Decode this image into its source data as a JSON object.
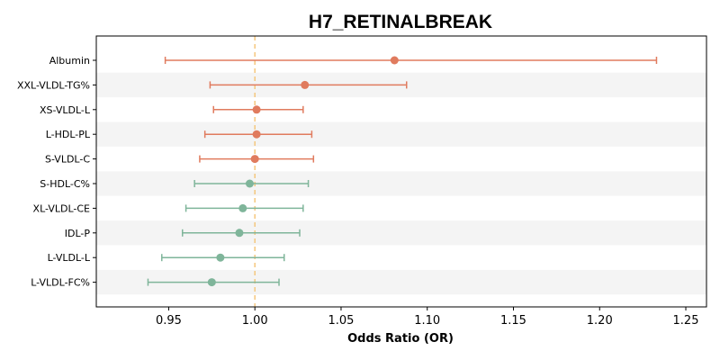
{
  "chart_data": {
    "type": "forest",
    "title": "H7_RETINALBREAK",
    "xlabel": "Odds Ratio (OR)",
    "xlim": [
      0.908,
      1.262
    ],
    "xticks": [
      0.95,
      1.0,
      1.05,
      1.1,
      1.15,
      1.2,
      1.25
    ],
    "xtick_labels": [
      "0.95",
      "1.00",
      "1.05",
      "1.10",
      "1.15",
      "1.20",
      "1.25"
    ],
    "reference_line": 1.0,
    "alternating_row_shading": true,
    "colors": {
      "positive": "#e07b5e",
      "negative": "#7fb59a",
      "reference": "#f5c77e",
      "row_shade": "#f4f4f4"
    },
    "rows": [
      {
        "label": "Albumin",
        "or": 1.081,
        "lo": 0.948,
        "hi": 1.233,
        "group": "positive"
      },
      {
        "label": "XXL-VLDL-TG%",
        "or": 1.029,
        "lo": 0.974,
        "hi": 1.088,
        "group": "positive"
      },
      {
        "label": "XS-VLDL-L",
        "or": 1.001,
        "lo": 0.976,
        "hi": 1.028,
        "group": "positive"
      },
      {
        "label": "L-HDL-PL",
        "or": 1.001,
        "lo": 0.971,
        "hi": 1.033,
        "group": "positive"
      },
      {
        "label": "S-VLDL-C",
        "or": 1.0,
        "lo": 0.968,
        "hi": 1.034,
        "group": "positive"
      },
      {
        "label": "S-HDL-C%",
        "or": 0.997,
        "lo": 0.965,
        "hi": 1.031,
        "group": "negative"
      },
      {
        "label": "XL-VLDL-CE",
        "or": 0.993,
        "lo": 0.96,
        "hi": 1.028,
        "group": "negative"
      },
      {
        "label": "IDL-P",
        "or": 0.991,
        "lo": 0.958,
        "hi": 1.026,
        "group": "negative"
      },
      {
        "label": "L-VLDL-L",
        "or": 0.98,
        "lo": 0.946,
        "hi": 1.017,
        "group": "negative"
      },
      {
        "label": "L-VLDL-FC%",
        "or": 0.975,
        "lo": 0.938,
        "hi": 1.014,
        "group": "negative"
      }
    ]
  }
}
